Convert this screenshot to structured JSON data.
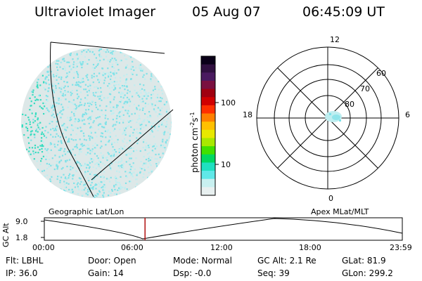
{
  "header": {
    "instrument": "Ultraviolet Imager",
    "date": "05 Aug 07",
    "time": "06:45:09  UT"
  },
  "colorbar": {
    "label": "photon cm",
    "label_sup1": "-2",
    "label_mid": "s",
    "label_sup2": "-1",
    "ticks": [
      "100",
      "10"
    ],
    "colors": [
      "#0a0018",
      "#301040",
      "#4a1a60",
      "#7a1040",
      "#a00010",
      "#d00000",
      "#ff3000",
      "#ff8000",
      "#ffc000",
      "#e8e800",
      "#a8e800",
      "#40e000",
      "#00d860",
      "#20e0c0",
      "#60e8e8",
      "#c8f0f0",
      "#e8f0f0"
    ]
  },
  "polar_plot": {
    "mlt_labels": {
      "top": "12",
      "bottom": "0",
      "left": "18",
      "right": "6"
    },
    "lat_labels": [
      "60",
      "70",
      "80"
    ]
  },
  "timeline": {
    "left_title": "Geographic Lat/Lon",
    "right_title": "Apex  MLat/MLT",
    "ylabel": "GC Alt",
    "yticks": [
      "9.0",
      "1.8"
    ],
    "xticks": [
      "00:00",
      "06:00",
      "12:00",
      "18:00",
      "23:59"
    ],
    "current_time_fraction": 0.2814
  },
  "info": {
    "filter": "Flt: LBHL",
    "ip": "IP: 36.0",
    "door": "Door: Open",
    "gain": "Gain: 14",
    "mode": "Mode:  Normal",
    "dsp": "Dsp:    -0.0",
    "gc_alt": "GC Alt: 2.1 Re",
    "seq": "Seq: 39",
    "glat": "GLat:  81.9",
    "glon": "GLon: 299.2"
  },
  "colors": {
    "grid": "#000000",
    "time_marker": "#b01010",
    "speckle_light": "#c0eef0",
    "speckle_mid": "#7fe2e8",
    "speckle_teal": "#36dcc0"
  }
}
